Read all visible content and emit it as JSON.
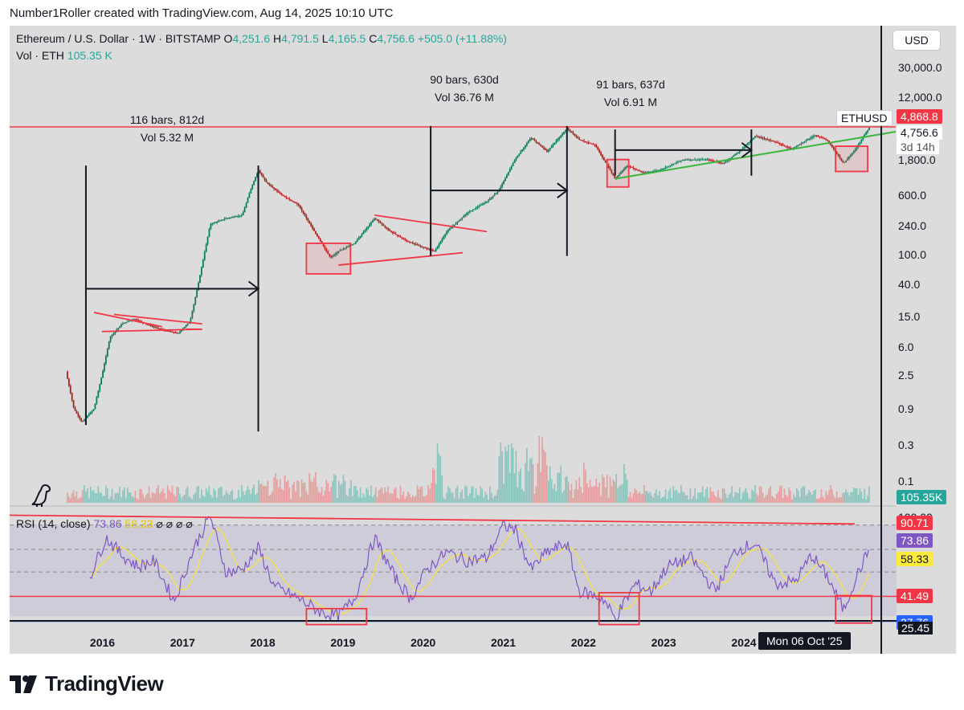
{
  "credit": "Number1Roller created with TradingView.com, Aug 14, 2025 10:10 UTC",
  "legend": {
    "symbol": "Ethereum / U.S. Dollar · 1W · BITSTAMP",
    "o_label": "O",
    "o_value": "4,251.6",
    "h_label": "H",
    "h_value": "4,791.5",
    "l_label": "L",
    "l_value": "4,165.5",
    "c_label": "C",
    "c_value": "4,756.6",
    "change": "+505.0 (+11.88%)",
    "vol_label": "Vol · ETH",
    "vol_value": "105.35 K"
  },
  "currency_button": "USD",
  "price_axis": [
    "30,000.0",
    "12,000.0",
    "1,800.0",
    "600.0",
    "240.0",
    "100.0",
    "40.0",
    "15.0",
    "6.0",
    "2.5",
    "0.9",
    "0.3",
    "0.1"
  ],
  "price_tags": {
    "resistance": "4,868.8",
    "symbol": "ETHUSD",
    "last_price": "4,756.6",
    "countdown": "3d 14h",
    "volume": "105.35K"
  },
  "annotations": [
    {
      "bars": "116 bars, 812d",
      "vol": "Vol 5.32 M"
    },
    {
      "bars": "90 bars, 630d",
      "vol": "Vol 36.76 M"
    },
    {
      "bars": "91 bars, 637d",
      "vol": "Vol 6.91 M"
    }
  ],
  "rsi": {
    "label": "RSI (14, close)",
    "value": "73.86",
    "ma_value": "58.33",
    "glyphs": "⌀ ⌀ ⌀ ⌀",
    "axis_top": "100.00",
    "axis_bottom": "25.45",
    "tags": {
      "upper": "90.71",
      "rsi": "73.86",
      "ma": "58.33",
      "mid": "41.49",
      "lower": "27.76"
    }
  },
  "x_axis": [
    "2016",
    "2017",
    "2018",
    "2019",
    "2020",
    "2021",
    "2022",
    "2023",
    "2024",
    "202"
  ],
  "crosshair_date": "Mon 06 Oct '25",
  "brand": "TradingView",
  "colors": {
    "up": "#26a69a",
    "down": "#ef5350",
    "red_line": "#f23645",
    "green_line": "#3db53d",
    "rsi": "#7e57c2",
    "rsi_ma": "#f5e14a",
    "blue_line": "#2962ff"
  },
  "chart_data": {
    "type": "candlestick",
    "title": "Ethereum / U.S. Dollar · 1W · BITSTAMP",
    "y_scale": "log",
    "ylim": [
      0.05,
      40000
    ],
    "x_range": [
      "2015-08",
      "2025-12"
    ],
    "price_path": [
      [
        2015.6,
        2.8
      ],
      [
        2015.7,
        0.9
      ],
      [
        2015.8,
        0.6
      ],
      [
        2015.95,
        0.9
      ],
      [
        2016.05,
        2.5
      ],
      [
        2016.15,
        8
      ],
      [
        2016.3,
        12
      ],
      [
        2016.45,
        14
      ],
      [
        2016.6,
        12
      ],
      [
        2016.8,
        10
      ],
      [
        2017.0,
        9
      ],
      [
        2017.15,
        13
      ],
      [
        2017.25,
        40
      ],
      [
        2017.4,
        250
      ],
      [
        2017.6,
        300
      ],
      [
        2017.8,
        330
      ],
      [
        2017.9,
        700
      ],
      [
        2018.0,
        1300
      ],
      [
        2018.1,
        900
      ],
      [
        2018.3,
        600
      ],
      [
        2018.5,
        450
      ],
      [
        2018.7,
        200
      ],
      [
        2018.9,
        90
      ],
      [
        2019.0,
        110
      ],
      [
        2019.2,
        140
      ],
      [
        2019.45,
        300
      ],
      [
        2019.65,
        200
      ],
      [
        2019.85,
        150
      ],
      [
        2020.0,
        130
      ],
      [
        2020.2,
        110
      ],
      [
        2020.35,
        200
      ],
      [
        2020.6,
        350
      ],
      [
        2020.85,
        500
      ],
      [
        2021.0,
        700
      ],
      [
        2021.2,
        1800
      ],
      [
        2021.4,
        3500
      ],
      [
        2021.6,
        2300
      ],
      [
        2021.75,
        3500
      ],
      [
        2021.85,
        4700
      ],
      [
        2022.0,
        3300
      ],
      [
        2022.2,
        2800
      ],
      [
        2022.45,
        1000
      ],
      [
        2022.6,
        1500
      ],
      [
        2022.8,
        1200
      ],
      [
        2023.0,
        1300
      ],
      [
        2023.3,
        1800
      ],
      [
        2023.6,
        1800
      ],
      [
        2023.8,
        1600
      ],
      [
        2024.0,
        2300
      ],
      [
        2024.2,
        3700
      ],
      [
        2024.4,
        3200
      ],
      [
        2024.65,
        2500
      ],
      [
        2024.95,
        3800
      ],
      [
        2025.1,
        3200
      ],
      [
        2025.3,
        1600
      ],
      [
        2025.45,
        2500
      ],
      [
        2025.55,
        3700
      ],
      [
        2025.62,
        4756.6
      ]
    ],
    "ohlc_last": {
      "open": 4251.6,
      "high": 4791.5,
      "low": 4165.5,
      "close": 4756.6,
      "change": 505.0,
      "change_pct": 11.88
    },
    "volume_last": "105.35K",
    "rsi_path": [
      [
        2015.9,
        55
      ],
      [
        2016.1,
        82
      ],
      [
        2016.3,
        70
      ],
      [
        2016.5,
        62
      ],
      [
        2016.7,
        66
      ],
      [
        2016.95,
        38
      ],
      [
        2017.2,
        75
      ],
      [
        2017.4,
        97
      ],
      [
        2017.6,
        58
      ],
      [
        2017.8,
        60
      ],
      [
        2018.0,
        75
      ],
      [
        2018.2,
        48
      ],
      [
        2018.5,
        40
      ],
      [
        2018.8,
        30
      ],
      [
        2019.0,
        28
      ],
      [
        2019.2,
        40
      ],
      [
        2019.45,
        82
      ],
      [
        2019.7,
        55
      ],
      [
        2019.9,
        40
      ],
      [
        2020.1,
        60
      ],
      [
        2020.35,
        72
      ],
      [
        2020.6,
        66
      ],
      [
        2020.85,
        68
      ],
      [
        2021.05,
        90
      ],
      [
        2021.2,
        88
      ],
      [
        2021.4,
        60
      ],
      [
        2021.6,
        72
      ],
      [
        2021.85,
        78
      ],
      [
        2022.0,
        45
      ],
      [
        2022.3,
        40
      ],
      [
        2022.45,
        26
      ],
      [
        2022.7,
        50
      ],
      [
        2022.9,
        45
      ],
      [
        2023.1,
        62
      ],
      [
        2023.4,
        68
      ],
      [
        2023.7,
        45
      ],
      [
        2023.95,
        73
      ],
      [
        2024.2,
        78
      ],
      [
        2024.45,
        50
      ],
      [
        2024.7,
        52
      ],
      [
        2024.9,
        70
      ],
      [
        2025.1,
        55
      ],
      [
        2025.3,
        32
      ],
      [
        2025.45,
        54
      ],
      [
        2025.62,
        73.86
      ]
    ],
    "rsi_levels": {
      "upper_trend_start": 98,
      "upper_trend_end": 92,
      "mid": 41.49,
      "lower": 27.76
    }
  }
}
